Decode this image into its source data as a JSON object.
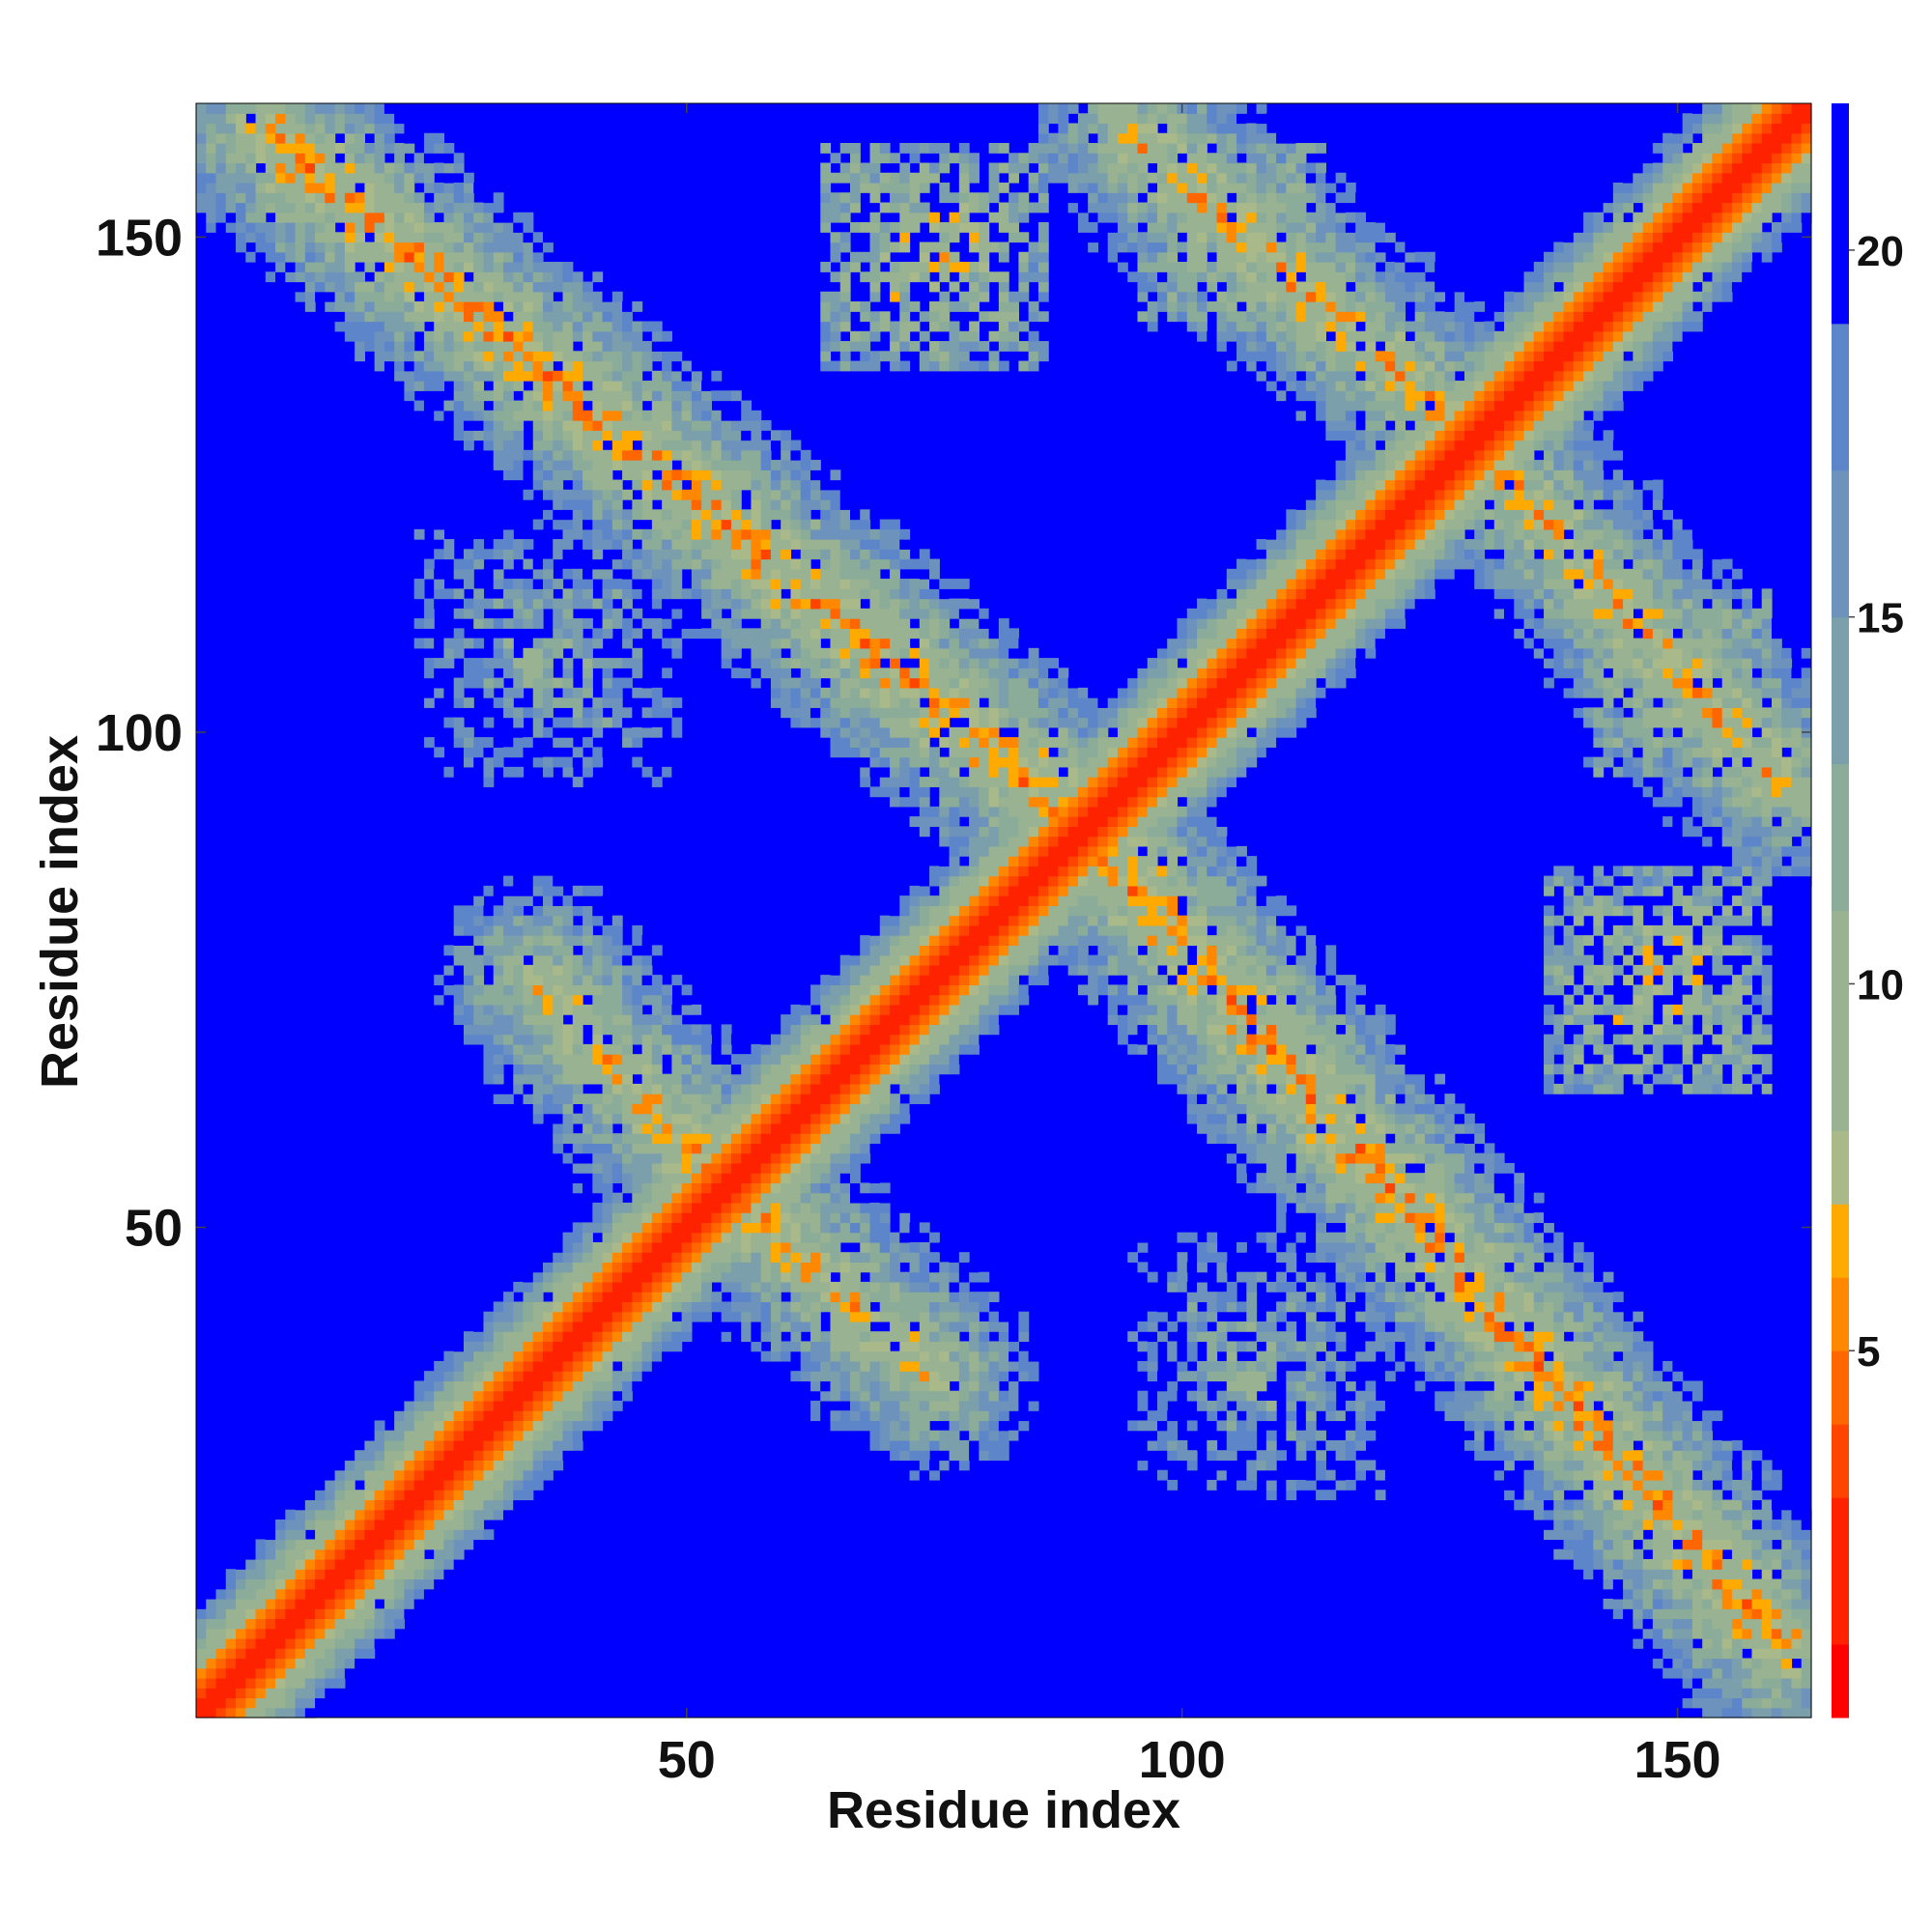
{
  "chart_data": {
    "type": "heatmap",
    "title": "",
    "xlabel": "Residue index",
    "ylabel": "Residue index",
    "xlim": [
      1,
      163
    ],
    "ylim": [
      1,
      163
    ],
    "n_residues": 163,
    "x_ticks": [
      50,
      100,
      150
    ],
    "y_ticks": [
      50,
      100,
      150
    ],
    "colorbar": {
      "ticks": [
        5,
        10,
        15,
        20
      ],
      "range": [
        0,
        22
      ],
      "levels": [
        {
          "value": 1,
          "color": "#ff0000"
        },
        {
          "value": 3,
          "color": "#ff2200"
        },
        {
          "value": 4,
          "color": "#ff4400"
        },
        {
          "value": 5,
          "color": "#ff6600"
        },
        {
          "value": 6,
          "color": "#ff8800"
        },
        {
          "value": 7,
          "color": "#ffaa00"
        },
        {
          "value": 8,
          "color": "#a9b98a"
        },
        {
          "value": 11,
          "color": "#98b292"
        },
        {
          "value": 13,
          "color": "#8aac98"
        },
        {
          "value": 15,
          "color": "#7b9fab"
        },
        {
          "value": 17,
          "color": "#6d93bd"
        },
        {
          "value": 19,
          "color": "#5c86c9"
        },
        {
          "value": 21,
          "color": "#0000ff"
        }
      ]
    },
    "features": {
      "main_diagonal": {
        "from": [
          1,
          1
        ],
        "to": [
          163,
          163
        ],
        "values_by_offset": [
          2,
          3,
          4,
          5,
          6,
          8,
          9,
          11,
          13,
          15,
          17,
          19
        ]
      },
      "anti_diagonal_top_left": {
        "from": [
          8,
          160
        ],
        "to": [
          100,
          82
        ],
        "min_distance": 6
      },
      "anti_diagonal_bottom_right": {
        "from": [
          95,
          85
        ],
        "to": [
          160,
          18
        ],
        "min_distance": 6
      },
      "off_diagonal_top_right": {
        "from": [
          95,
          160
        ],
        "to": [
          140,
          120
        ],
        "min_distance": 7
      },
      "off_diagonal_bottom_left": {
        "from": [
          35,
          75
        ],
        "to": [
          75,
          30
        ],
        "min_distance": 7
      },
      "contact_patches": [
        {
          "center_x": 75,
          "center_y": 148,
          "extent": 12,
          "min_distance": 7
        },
        {
          "center_x": 36,
          "center_y": 108,
          "extent": 14,
          "min_distance": 11
        },
        {
          "center_x": 148,
          "center_y": 75,
          "extent": 12,
          "min_distance": 7
        },
        {
          "center_x": 108,
          "center_y": 36,
          "extent": 14,
          "min_distance": 11
        },
        {
          "center_x": 150,
          "center_y": 105,
          "extent": 12,
          "min_distance": 9
        },
        {
          "center_x": 105,
          "center_y": 150,
          "extent": 10,
          "min_distance": 9
        },
        {
          "center_x": 88,
          "center_y": 88,
          "extent": 8,
          "min_distance": 11
        }
      ],
      "background_value": 21
    }
  }
}
